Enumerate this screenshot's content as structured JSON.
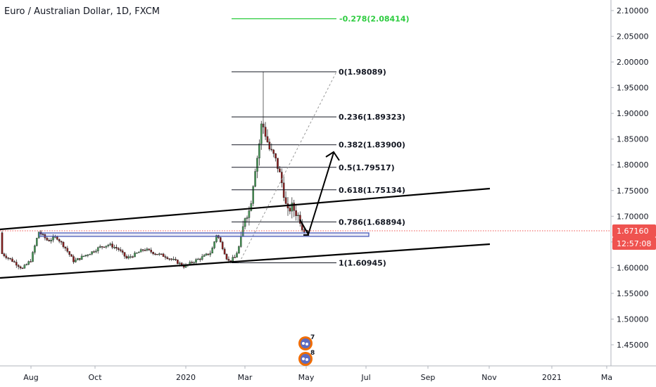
{
  "chart_data": {
    "type": "candlestick",
    "title": "Euro / Australian Dollar, 1D, FXCM",
    "y_ticks": [
      "2.10000",
      "2.05000",
      "2.00000",
      "1.95000",
      "1.90000",
      "1.85000",
      "1.80000",
      "1.75000",
      "1.70000",
      "1.65000",
      "1.60000",
      "1.55000",
      "1.50000",
      "1.45000"
    ],
    "x_ticks": [
      "Aug",
      "Oct",
      "2020",
      "Mar",
      "May",
      "Jul",
      "Sep",
      "Nov",
      "2021",
      "Ma"
    ],
    "ylim": [
      1.41,
      2.12
    ],
    "current_price": "1.67160",
    "countdown": "12:57:08",
    "fib_levels": [
      {
        "label": "-0.278(2.08414)",
        "value": 2.08414,
        "color": "#2ecc40"
      },
      {
        "label": "0(1.98089)",
        "value": 1.98089,
        "color": "#131722"
      },
      {
        "label": "0.236(1.89323)",
        "value": 1.89323,
        "color": "#131722"
      },
      {
        "label": "0.382(1.83900)",
        "value": 1.839,
        "color": "#131722"
      },
      {
        "label": "0.5(1.79517)",
        "value": 1.79517,
        "color": "#131722"
      },
      {
        "label": "0.618(1.75134)",
        "value": 1.75134,
        "color": "#131722"
      },
      {
        "label": "0.786(1.68894)",
        "value": 1.68894,
        "color": "#131722"
      },
      {
        "label": "1(1.60945)",
        "value": 1.60945,
        "color": "#131722"
      }
    ],
    "events": [
      "7",
      "8"
    ],
    "colors": {
      "up": "#26a69a",
      "down": "#ef5350",
      "candle_body_up": "#4a9d5a",
      "candle_body_down": "#8b1e1e",
      "price_line": "#ef5350",
      "zone": "#3f51b5",
      "green_fib": "#2ecc40"
    }
  }
}
